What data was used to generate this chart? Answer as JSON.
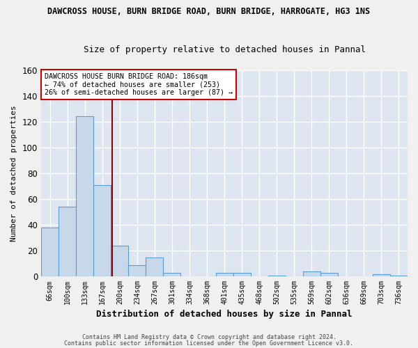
{
  "title_line1": "DAWCROSS HOUSE, BURN BRIDGE ROAD, BURN BRIDGE, HARROGATE, HG3 1NS",
  "title_line2": "Size of property relative to detached houses in Pannal",
  "xlabel": "Distribution of detached houses by size in Pannal",
  "ylabel": "Number of detached properties",
  "categories": [
    "66sqm",
    "100sqm",
    "133sqm",
    "167sqm",
    "200sqm",
    "234sqm",
    "267sqm",
    "301sqm",
    "334sqm",
    "368sqm",
    "401sqm",
    "435sqm",
    "468sqm",
    "502sqm",
    "535sqm",
    "569sqm",
    "602sqm",
    "636sqm",
    "669sqm",
    "703sqm",
    "736sqm"
  ],
  "values": [
    38,
    54,
    124,
    71,
    24,
    9,
    15,
    3,
    0,
    0,
    3,
    3,
    0,
    1,
    0,
    4,
    3,
    0,
    0,
    2,
    1
  ],
  "bar_color": "#c8d8eb",
  "bar_edge_color": "#5b9bd5",
  "background_color": "#dde6f0",
  "grid_color": "#ffffff",
  "marker_color": "#8b0000",
  "annotation_text": "DAWCROSS HOUSE BURN BRIDGE ROAD: 186sqm\n← 74% of detached houses are smaller (253)\n26% of semi-detached houses are larger (87) →",
  "annotation_box_color": "#ffffff",
  "annotation_box_edge": "#cc0000",
  "ylim": [
    0,
    160
  ],
  "yticks": [
    0,
    20,
    40,
    60,
    80,
    100,
    120,
    140,
    160
  ],
  "fig_background": "#f0f0f0",
  "footer_line1": "Contains HM Land Registry data © Crown copyright and database right 2024.",
  "footer_line2": "Contains public sector information licensed under the Open Government Licence v3.0."
}
